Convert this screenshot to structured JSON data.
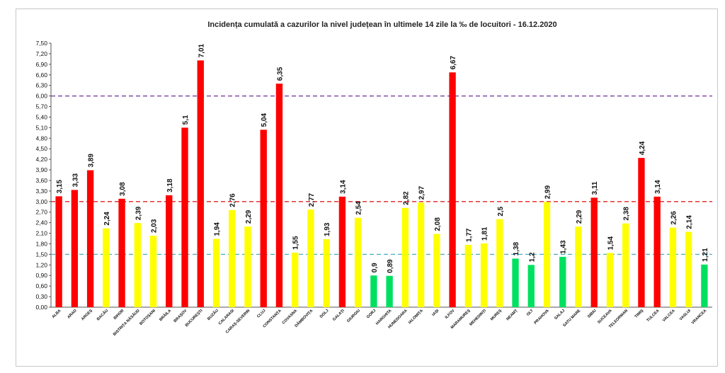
{
  "chart_data": {
    "type": "bar",
    "title": "Incidența cumulată a cazurilor la nivel județean în ultimele 14 zile   la ‰ de locuitori  - 16.12.2020",
    "xlabel": "",
    "ylabel": "",
    "ylim": [
      0,
      7.5
    ],
    "yticks": [
      "0,00",
      "0,30",
      "0,60",
      "0,90",
      "1,20",
      "1,50",
      "1,80",
      "2,10",
      "2,40",
      "2,70",
      "3,00",
      "3,30",
      "3,60",
      "3,90",
      "4,20",
      "4,50",
      "4,80",
      "5,10",
      "5,40",
      "5,70",
      "6,00",
      "6,30",
      "6,60",
      "6,90",
      "7,20",
      "7,50"
    ],
    "grid": false,
    "thresholds": [
      {
        "value": 6.0,
        "color": "#7030a0"
      },
      {
        "value": 3.0,
        "color": "#e02020"
      },
      {
        "value": 1.5,
        "color": "#4bacc6"
      }
    ],
    "categories": [
      "ALBA",
      "ARAD",
      "ARGEȘ",
      "BACĂU",
      "BIHOR",
      "BISTRIȚA NĂSĂUD",
      "BOTOȘANI",
      "BRĂILA",
      "BRAȘOV",
      "BUCUREȘTI",
      "BUZĂU",
      "CALARASI",
      "CARAȘ-SEVERIN",
      "CLUJ",
      "CONSTANȚA",
      "COVASNA",
      "DÂMBOVIȚA",
      "DOLJ",
      "GALAȚI",
      "GIURGIU",
      "GORJ",
      "HARGHITA",
      "HUNEDOARA",
      "IALOMIȚA",
      "IAȘI",
      "ILFOV",
      "MARAMUREȘ",
      "MEHEDINȚI",
      "MUREȘ",
      "NEAMȚ",
      "OLT",
      "PRAHOVA",
      "SALAJ",
      "SATU MARE",
      "SIBIU",
      "SUCEAVA",
      "TELEORMAN",
      "TIMIȘ",
      "TULCEA",
      "VALCEA",
      "VASLUI",
      "VRANCEA"
    ],
    "values": [
      3.15,
      3.33,
      3.89,
      2.24,
      3.08,
      2.39,
      2.03,
      3.18,
      5.1,
      7.01,
      1.94,
      2.76,
      2.29,
      5.04,
      6.35,
      1.55,
      2.77,
      1.93,
      3.14,
      2.54,
      0.9,
      0.89,
      2.82,
      2.97,
      2.08,
      6.67,
      1.77,
      1.81,
      2.5,
      1.38,
      1.2,
      2.99,
      1.43,
      2.29,
      3.11,
      1.54,
      2.38,
      4.24,
      3.14,
      2.26,
      2.14,
      1.21
    ],
    "value_labels": [
      "3,15",
      "3,33",
      "3,89",
      "2,24",
      "3,08",
      "2,39",
      "2,03",
      "3,18",
      "5,1",
      "7,01",
      "1,94",
      "2,76",
      "2,29",
      "5,04",
      "6,35",
      "1,55",
      "2,77",
      "1,93",
      "3,14",
      "2,54",
      "0,9",
      "0,89",
      "2,82",
      "2,97",
      "2,08",
      "6,67",
      "1,77",
      "1,81",
      "2,5",
      "1,38",
      "1,2",
      "2,99",
      "1,43",
      "2,29",
      "3,11",
      "1,54",
      "2,38",
      "4,24",
      "3,14",
      "2,26",
      "2,14",
      "1,21"
    ],
    "colors": {
      "red": "#ff0000",
      "yellow": "#ffff00",
      "green": "#00e060"
    }
  }
}
